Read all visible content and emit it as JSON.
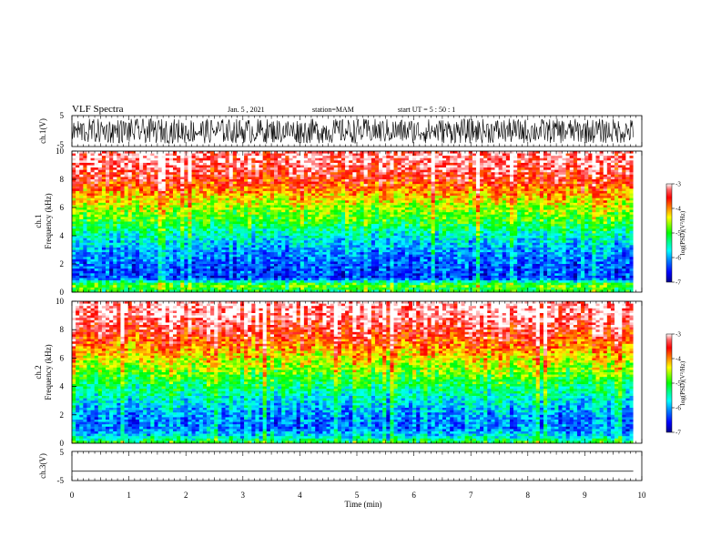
{
  "header": {
    "title": "VLF Spectra",
    "date": "Jan. 5 , 2021",
    "station": "station=MAM",
    "start": "start  UT =   5 : 50 : 1"
  },
  "colors": {
    "spectrum_scale": [
      "#00008b",
      "#0000ff",
      "#0080ff",
      "#00ffff",
      "#00ff80",
      "#00ff00",
      "#80ff00",
      "#ffff00",
      "#ff8000",
      "#ff0000",
      "#ffffff"
    ]
  },
  "chart_data": [
    {
      "type": "line",
      "name": "ch1-waveform",
      "ylabel": "ch.1(V)",
      "ylim": [
        -5,
        5
      ],
      "y_ticks": [
        "5",
        "-5"
      ],
      "x_range_min": [
        0,
        10
      ],
      "note_amplitude_range": [
        -4,
        4
      ]
    },
    {
      "type": "heatmap",
      "name": "ch1-spectrogram",
      "ylabel": "ch.1\nFrequency (kHz)",
      "ylabel_lines": [
        "ch.1",
        "Frequency  (kHz)"
      ],
      "ylim": [
        0,
        10
      ],
      "y_ticks": [
        "0",
        "2",
        "4",
        "6",
        "8",
        "10"
      ],
      "x_range_min": [
        0,
        9.85
      ],
      "colorbar": {
        "label": "log(PSD)(V²/Hz)",
        "range": [
          -7,
          -3
        ],
        "ticks": [
          "-3",
          "-4",
          "-5",
          "-6",
          "-7"
        ]
      },
      "freq_band_log_psd": [
        {
          "f_khz": 0.0,
          "log_psd": -5.2
        },
        {
          "f_khz": 0.5,
          "log_psd": -4.8
        },
        {
          "f_khz": 1.0,
          "log_psd": -6.4
        },
        {
          "f_khz": 2.0,
          "log_psd": -6.3
        },
        {
          "f_khz": 3.0,
          "log_psd": -6.0
        },
        {
          "f_khz": 4.0,
          "log_psd": -5.6
        },
        {
          "f_khz": 5.0,
          "log_psd": -5.0
        },
        {
          "f_khz": 6.0,
          "log_psd": -4.6
        },
        {
          "f_khz": 7.0,
          "log_psd": -4.1
        },
        {
          "f_khz": 8.0,
          "log_psd": -3.6
        },
        {
          "f_khz": 9.0,
          "log_psd": -3.3
        },
        {
          "f_khz": 10.0,
          "log_psd": -3.2
        }
      ]
    },
    {
      "type": "heatmap",
      "name": "ch2-spectrogram",
      "ylabel_lines": [
        "ch.2",
        "Frequency  (kHz)"
      ],
      "ylim": [
        0,
        10
      ],
      "y_ticks": [
        "0",
        "2",
        "4",
        "6",
        "8",
        "10"
      ],
      "x_range_min": [
        0,
        9.85
      ],
      "colorbar": {
        "label": "log(PSD)(V²/Hz)",
        "range": [
          -7,
          -3
        ],
        "ticks": [
          "-3",
          "-4",
          "-5",
          "-6",
          "-7"
        ]
      },
      "freq_band_log_psd": [
        {
          "f_khz": 0.0,
          "log_psd": -5.0
        },
        {
          "f_khz": 0.5,
          "log_psd": -5.8
        },
        {
          "f_khz": 1.0,
          "log_psd": -6.2
        },
        {
          "f_khz": 2.0,
          "log_psd": -6.1
        },
        {
          "f_khz": 3.0,
          "log_psd": -5.7
        },
        {
          "f_khz": 4.0,
          "log_psd": -5.3
        },
        {
          "f_khz": 5.0,
          "log_psd": -4.8
        },
        {
          "f_khz": 6.0,
          "log_psd": -4.4
        },
        {
          "f_khz": 7.0,
          "log_psd": -3.9
        },
        {
          "f_khz": 8.0,
          "log_psd": -3.5
        },
        {
          "f_khz": 9.0,
          "log_psd": -3.2
        },
        {
          "f_khz": 10.0,
          "log_psd": -3.1
        }
      ]
    },
    {
      "type": "line",
      "name": "ch3-waveform",
      "ylabel": "ch.3(V)",
      "ylim": [
        -5,
        5
      ],
      "y_ticks": [
        "5",
        "-5"
      ],
      "x_range_min": [
        0,
        10
      ],
      "constant_value": -1.8
    }
  ],
  "x_axis": {
    "xlabel": "Time  (min)",
    "xlim": [
      0,
      10
    ],
    "ticks": [
      "0",
      "1",
      "2",
      "3",
      "4",
      "5",
      "6",
      "7",
      "8",
      "9",
      "10"
    ]
  }
}
